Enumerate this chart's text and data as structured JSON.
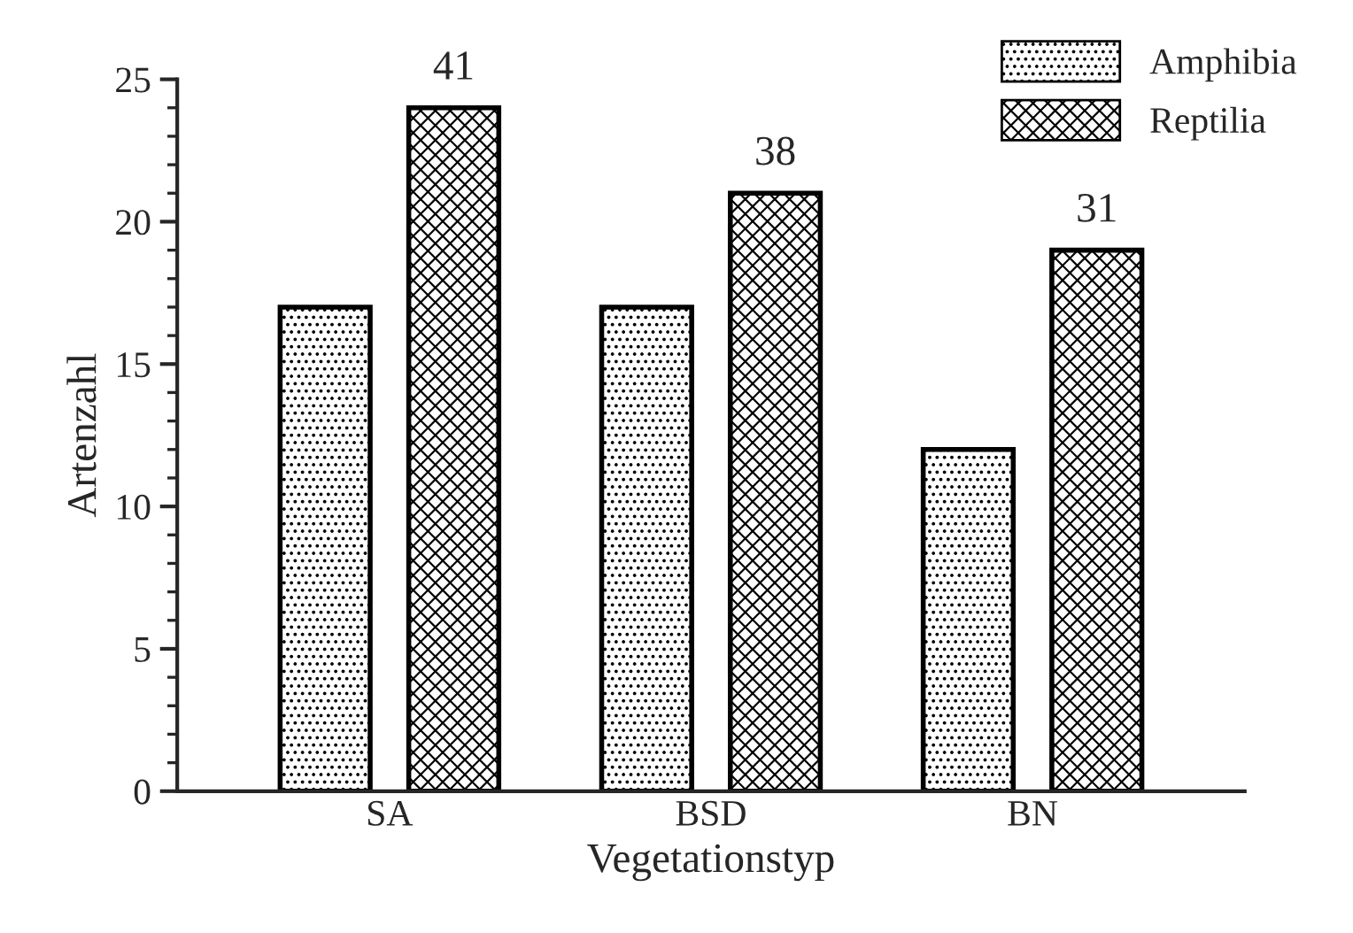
{
  "chart_data": {
    "type": "bar",
    "xlabel": "Vegetationstyp",
    "ylabel": "Artenzahl",
    "categories": [
      "SA",
      "BSD",
      "BN"
    ],
    "series": [
      {
        "name": "Amphibia",
        "color": "#000000",
        "values": [
          17,
          17,
          12
        ]
      },
      {
        "name": "Reptilia",
        "color": "#000000",
        "values": [
          24,
          21,
          19
        ]
      }
    ],
    "totals": [
      "41",
      "38",
      "31"
    ],
    "ylim": [
      0,
      25
    ],
    "yticks": [
      0,
      5,
      10,
      15,
      20,
      25
    ],
    "grid": false,
    "legend": "top right"
  }
}
